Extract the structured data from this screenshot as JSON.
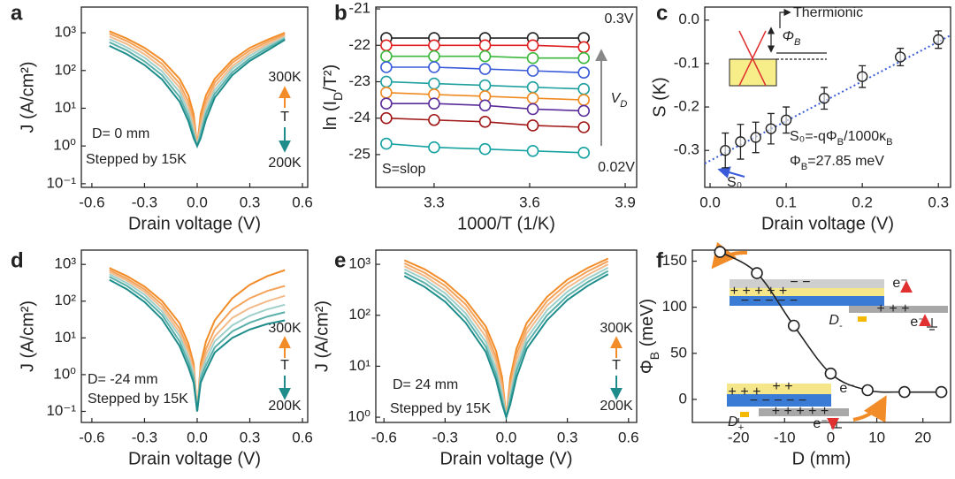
{
  "chart_data": [
    {
      "type": "line",
      "panel_label": "a",
      "x_label": "Drain voltage (V)",
      "y_label": "J (A/cm²)",
      "log_y": true,
      "xlim": [
        -0.66,
        0.63
      ],
      "ylim": [
        0.08,
        4800
      ],
      "xticks": [
        -0.6,
        -0.3,
        {
          "value": 0,
          "label": "0.0"
        },
        0.3,
        0.6
      ],
      "yticks": [
        {
          "value": 0.1,
          "label": "10⁻¹"
        },
        {
          "value": 1,
          "label": "10⁰"
        },
        {
          "value": 10,
          "label": "10¹"
        },
        {
          "value": 100,
          "label": "10²"
        },
        {
          "value": 1000,
          "label": "10³"
        }
      ],
      "annotations": [
        "300K",
        "T",
        "200K",
        "D= 0 mm",
        "Stepped by 15K"
      ],
      "x": [
        -0.5,
        -0.4,
        -0.3,
        -0.2,
        -0.1,
        -0.05,
        -0.02,
        0,
        0.02,
        0.05,
        0.1,
        0.2,
        0.3,
        0.4,
        0.5
      ],
      "series": [
        {
          "color": "#f28c28",
          "values": [
            1100,
            700,
            400,
            190,
            60,
            22,
            7,
            1,
            7,
            22,
            60,
            190,
            400,
            650,
            1000
          ]
        },
        {
          "color": "#f4a35a",
          "values": [
            950,
            600,
            330,
            150,
            45,
            15,
            5,
            1,
            5,
            16,
            48,
            160,
            340,
            570,
            900
          ]
        },
        {
          "color": "#f2bb8c",
          "values": [
            800,
            500,
            270,
            120,
            35,
            11,
            3.5,
            1,
            3.5,
            12,
            38,
            130,
            290,
            500,
            820
          ]
        },
        {
          "color": "#9fd0cb",
          "values": [
            680,
            410,
            220,
            95,
            27,
            8,
            2.5,
            1,
            2.5,
            9,
            30,
            110,
            250,
            440,
            760
          ]
        },
        {
          "color": "#5bb0aa",
          "values": [
            560,
            340,
            175,
            75,
            20,
            6,
            2,
            1,
            2,
            7,
            24,
            90,
            210,
            390,
            700
          ]
        },
        {
          "color": "#1d8c8a",
          "values": [
            450,
            270,
            140,
            58,
            15,
            4.5,
            1.6,
            1,
            1.6,
            5,
            19,
            75,
            180,
            340,
            650
          ]
        }
      ]
    },
    {
      "type": "line",
      "panel_label": "b",
      "x_label": "1000/T (1/K)",
      "y_label": [
        "ln (I",
        "D",
        "/T²)"
      ],
      "markers": true,
      "xlim": [
        3.117,
        3.936
      ],
      "ylim": [
        -25.9,
        -20.95
      ],
      "xticks": [
        3.3,
        3.6,
        3.9
      ],
      "yticks": [
        -25,
        -24,
        -23,
        -22,
        -21
      ],
      "annotations": [
        "0.3V",
        "0.02V",
        "S=slop",
        [
          "V",
          "D"
        ]
      ],
      "x": [
        3.15,
        3.3,
        3.46,
        3.61,
        3.77
      ],
      "series": [
        {
          "color": "#222222",
          "values": [
            -21.8,
            -21.8,
            -21.8,
            -21.8,
            -21.8
          ]
        },
        {
          "color": "#e02020",
          "values": [
            -22.0,
            -22.0,
            -22.0,
            -22.0,
            -22.05
          ]
        },
        {
          "color": "#3cb83c",
          "values": [
            -22.3,
            -22.3,
            -22.3,
            -22.35,
            -22.35
          ]
        },
        {
          "color": "#3a5bd9",
          "values": [
            -22.6,
            -22.6,
            -22.65,
            -22.7,
            -22.75
          ]
        },
        {
          "color": "#1fa0a0",
          "values": [
            -23.0,
            -23.05,
            -23.1,
            -23.15,
            -23.2
          ]
        },
        {
          "color": "#f08a20",
          "values": [
            -23.3,
            -23.35,
            -23.4,
            -23.45,
            -23.5
          ]
        },
        {
          "color": "#5a2d9a",
          "values": [
            -23.6,
            -23.6,
            -23.65,
            -23.75,
            -23.8
          ]
        },
        {
          "color": "#a01818",
          "values": [
            -24.0,
            -24.05,
            -24.1,
            -24.2,
            -24.25
          ]
        },
        {
          "color": "#17a2a2",
          "values": [
            -24.7,
            -24.8,
            -24.85,
            -24.9,
            -24.95
          ]
        }
      ]
    },
    {
      "type": "scatter",
      "panel_label": "c",
      "x_label": "Drain voltage (V)",
      "y_label": "S (K)",
      "xlim": [
        -0.007,
        0.316
      ],
      "ylim": [
        -0.385,
        0.03
      ],
      "xticks": [
        {
          "value": 0,
          "label": "0.0"
        },
        0.1,
        0.2,
        0.3
      ],
      "yticks": [
        -0.3,
        -0.2,
        -0.1,
        {
          "value": 0,
          "label": "0.0"
        }
      ],
      "annotations": [
        "Thermionic",
        [
          "Φ",
          "B"
        ],
        [
          "S₀=-qΦ",
          "B",
          "/1000κ",
          "B"
        ],
        [
          "Φ",
          "B",
          "=27.85 meV"
        ],
        "S₀"
      ],
      "x": [
        0.02,
        0.04,
        0.06,
        0.08,
        0.1,
        0.15,
        0.2,
        0.25,
        0.3
      ],
      "values": [
        -0.3,
        -0.28,
        -0.27,
        -0.25,
        -0.23,
        -0.18,
        -0.13,
        -0.085,
        -0.045
      ],
      "errors": [
        0.04,
        0.04,
        0.035,
        0.035,
        0.03,
        0.025,
        0.025,
        0.02,
        0.02
      ],
      "color": "#222222",
      "fit": {
        "color": "#3a5bd9",
        "x": [
          -0.007,
          0.316
        ],
        "values": [
          -0.33,
          -0.035
        ]
      }
    },
    {
      "type": "line",
      "panel_label": "d",
      "x_label": "Drain voltage (V)",
      "y_label": "J (A/cm²)",
      "log_y": true,
      "xlim": [
        -0.66,
        0.63
      ],
      "ylim": [
        0.05,
        2450
      ],
      "xticks": [
        -0.6,
        -0.3,
        {
          "value": 0,
          "label": "0.0"
        },
        0.3,
        0.6
      ],
      "yticks": [
        {
          "value": 0.1,
          "label": "10⁻¹"
        },
        {
          "value": 1,
          "label": "10⁰"
        },
        {
          "value": 10,
          "label": "10¹"
        },
        {
          "value": 100,
          "label": "10²"
        },
        {
          "value": 1000,
          "label": "10³"
        }
      ],
      "annotations": [
        "300K",
        "T",
        "200K",
        "D= -24 mm",
        "Stepped by 15K"
      ],
      "x": [
        -0.5,
        -0.4,
        -0.3,
        -0.2,
        -0.1,
        -0.05,
        -0.02,
        0,
        0.02,
        0.05,
        0.1,
        0.2,
        0.3,
        0.4,
        0.5
      ],
      "series": [
        {
          "color": "#f28c28",
          "values": [
            800,
            480,
            250,
            100,
            25,
            7,
            2,
            0.1,
            2,
            8,
            30,
            120,
            280,
            480,
            700
          ]
        },
        {
          "color": "#f4a35a",
          "values": [
            700,
            410,
            210,
            80,
            18,
            5,
            1.5,
            0.1,
            1.5,
            5,
            17,
            60,
            120,
            190,
            260
          ]
        },
        {
          "color": "#f2bb8c",
          "values": [
            620,
            360,
            180,
            65,
            14,
            4,
            1.2,
            0.1,
            1.2,
            3.5,
            11,
            35,
            65,
            100,
            140
          ]
        },
        {
          "color": "#9fd0cb",
          "values": [
            540,
            310,
            150,
            52,
            11,
            3,
            1,
            0.1,
            1,
            2.5,
            8,
            22,
            40,
            60,
            80
          ]
        },
        {
          "color": "#5bb0aa",
          "values": [
            460,
            260,
            120,
            42,
            8,
            2.2,
            0.8,
            0.1,
            0.8,
            1.8,
            5.5,
            15,
            26,
            38,
            50
          ]
        },
        {
          "color": "#1d8c8a",
          "values": [
            380,
            210,
            95,
            32,
            6,
            1.6,
            0.6,
            0.1,
            0.6,
            1.3,
            4,
            10,
            17,
            24,
            30
          ]
        }
      ]
    },
    {
      "type": "line",
      "panel_label": "e",
      "x_label": "Drain voltage (V)",
      "y_label": "J (A/cm²)",
      "log_y": true,
      "xlim": [
        -0.64,
        0.64
      ],
      "ylim": [
        0.79,
        1900
      ],
      "xticks": [
        -0.6,
        -0.3,
        {
          "value": 0,
          "label": "0.0"
        },
        0.3,
        0.6
      ],
      "yticks": [
        {
          "value": 1,
          "label": "10⁰"
        },
        {
          "value": 10,
          "label": "10¹"
        },
        {
          "value": 100,
          "label": "10²"
        },
        {
          "value": 1000,
          "label": "10³"
        }
      ],
      "annotations": [
        "300K",
        "T",
        "200K",
        "D= 24 mm",
        "Stepped by 15K"
      ],
      "x": [
        -0.5,
        -0.4,
        -0.3,
        -0.2,
        -0.1,
        -0.05,
        -0.02,
        0,
        0.02,
        0.05,
        0.1,
        0.2,
        0.3,
        0.4,
        0.5
      ],
      "series": [
        {
          "color": "#f28c28",
          "values": [
            1200,
            800,
            450,
            200,
            60,
            20,
            6,
            1,
            6,
            22,
            70,
            230,
            500,
            850,
            1300
          ]
        },
        {
          "color": "#f4a35a",
          "values": [
            1050,
            680,
            380,
            165,
            48,
            15,
            4.5,
            1,
            4.5,
            17,
            55,
            190,
            420,
            730,
            1150
          ]
        },
        {
          "color": "#f2bb8c",
          "values": [
            920,
            590,
            320,
            135,
            38,
            12,
            3.5,
            1,
            3.5,
            13,
            44,
            155,
            350,
            620,
            1000
          ]
        },
        {
          "color": "#9fd0cb",
          "values": [
            800,
            510,
            270,
            110,
            30,
            9,
            2.8,
            1,
            2.8,
            10,
            35,
            125,
            290,
            530,
            860
          ]
        },
        {
          "color": "#5bb0aa",
          "values": [
            690,
            430,
            225,
            90,
            24,
            7,
            2.2,
            1,
            2.2,
            8,
            28,
            100,
            240,
            450,
            740
          ]
        },
        {
          "color": "#1d8c8a",
          "values": [
            590,
            360,
            185,
            72,
            19,
            5.5,
            1.8,
            1,
            1.8,
            6,
            22,
            80,
            200,
            380,
            640
          ]
        }
      ]
    },
    {
      "type": "line",
      "panel_label": "f",
      "x_label": "D (mm)",
      "y_label": [
        "Φ",
        "B",
        " (meV)"
      ],
      "markers": true,
      "smooth": true,
      "xlim": [
        -30,
        26
      ],
      "ylim": [
        -25,
        162
      ],
      "xticks": [
        -20,
        -10,
        0,
        10,
        20
      ],
      "yticks": [
        0,
        50,
        100,
        150
      ],
      "annotations": [
        "− −",
        "+ + + + +",
        "− − − − −",
        "e⁻",
        "+ + +",
        "e⁻",
        [
          "D",
          "-"
        ],
        "+ +",
        "+ + +",
        "− − − − −",
        "e⁻",
        "e⁻",
        "+ + + + +",
        [
          "D",
          "+"
        ]
      ],
      "x": [
        -24,
        -16,
        -8,
        0,
        8,
        16,
        24
      ],
      "series": [
        {
          "color": "#222222",
          "values": [
            160,
            137,
            80,
            28,
            10,
            8,
            8
          ]
        }
      ]
    }
  ]
}
